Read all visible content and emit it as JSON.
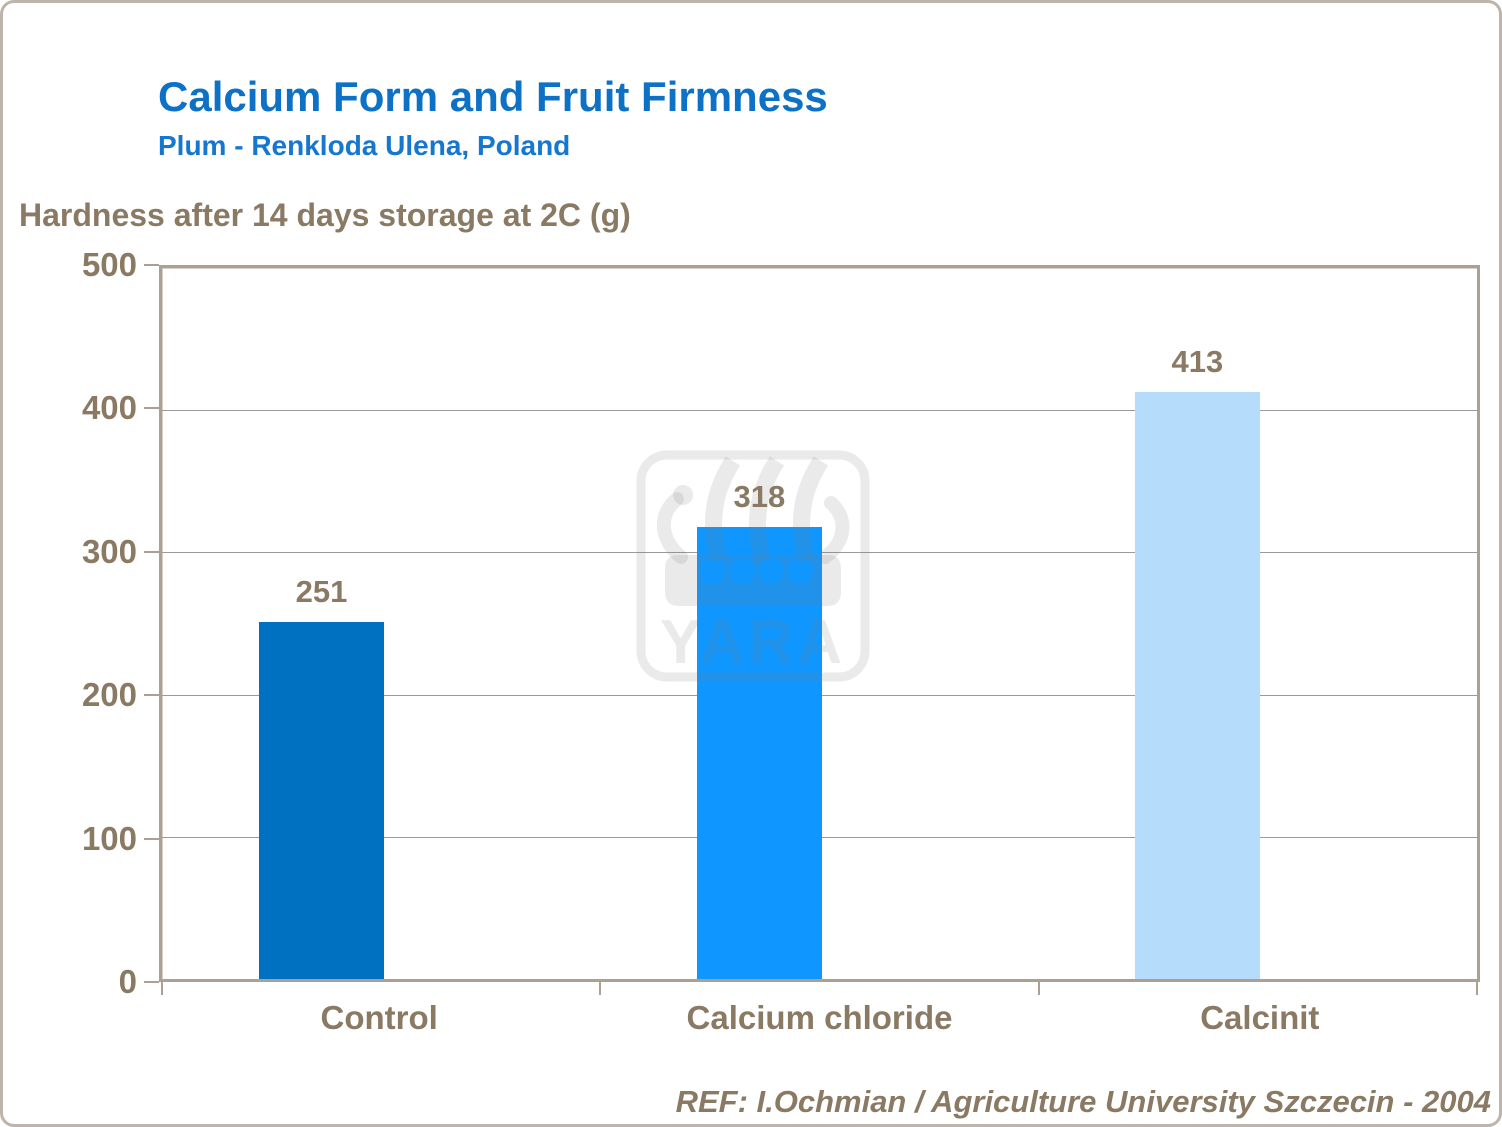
{
  "slide": {
    "title": "Calcium Form and Fruit Firmness",
    "subtitle": "Plum - Renkloda Ulena, Poland",
    "footer": "REF: I.Ochmian / Agriculture University Szczecin - 2004"
  },
  "chart_data": {
    "type": "bar",
    "title": "Hardness after 14 days storage at 2C (g)",
    "categories": [
      "Control",
      "Calcium chloride",
      "Calcinit"
    ],
    "values": [
      251,
      318,
      413
    ],
    "data_labels": [
      "251",
      "318",
      "413"
    ],
    "xlabel": "",
    "ylabel": "Hardness after 14 days storage at 2C (g)",
    "ylim": [
      0,
      500
    ],
    "yticks": [
      0,
      100,
      200,
      300,
      400,
      500
    ],
    "grid": true,
    "legend": false,
    "bar_colors": [
      "#0070C0",
      "#0F97FF",
      "#B6DCFB"
    ]
  },
  "watermark": {
    "text": "YARA"
  },
  "colors": {
    "title_blue": "#0D71C6",
    "subtitle_blue": "#1577CF",
    "axis_text_brown": "#8A7A64",
    "plot_border": "#ABA093",
    "gridline": "#9A9A9A",
    "slide_border": "#BDB5AB"
  }
}
